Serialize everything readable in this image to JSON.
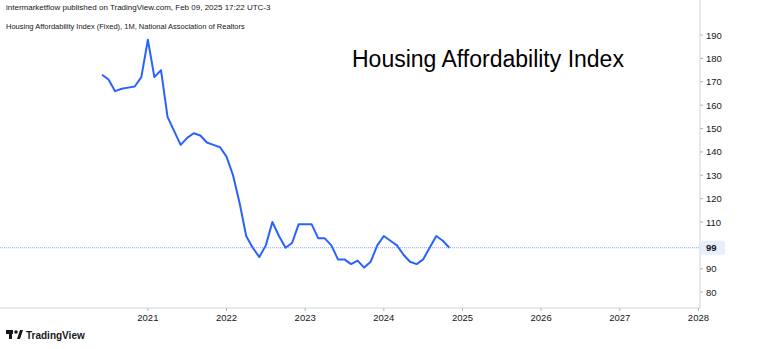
{
  "chart_data": {
    "type": "line",
    "title": "Housing Affordability Index",
    "annotations": [
      "intermarketflow published on TradingView.com, Feb 09, 2025 17:22 UTC-3",
      "TradingView"
    ],
    "x": [
      2020.417,
      2020.5,
      2020.583,
      2020.667,
      2020.75,
      2020.833,
      2020.917,
      2021.0,
      2021.083,
      2021.167,
      2021.25,
      2021.333,
      2021.417,
      2021.5,
      2021.583,
      2021.667,
      2021.75,
      2021.833,
      2021.917,
      2022.0,
      2022.083,
      2022.167,
      2022.25,
      2022.333,
      2022.417,
      2022.5,
      2022.583,
      2022.667,
      2022.75,
      2022.833,
      2022.917,
      2023.0,
      2023.083,
      2023.167,
      2023.25,
      2023.333,
      2023.417,
      2023.5,
      2023.583,
      2023.667,
      2023.75,
      2023.833,
      2023.917,
      2024.0,
      2024.083,
      2024.167,
      2024.25,
      2024.333,
      2024.417,
      2024.5,
      2024.583,
      2024.667,
      2024.75,
      2024.833
    ],
    "series": [
      {
        "name": "Housing Affordability Index (Fixed), 1M, National Association of Realtors",
        "color": "#2962ff",
        "values": [
          173,
          171,
          166,
          167,
          167.5,
          168,
          172,
          188,
          172,
          175,
          155,
          149,
          143,
          146,
          148,
          147,
          144,
          143,
          142,
          138,
          130,
          118,
          104,
          99,
          95,
          100,
          110,
          104,
          99,
          101,
          109,
          109,
          109,
          103,
          103,
          100,
          94,
          94,
          92,
          93.5,
          90.5,
          93,
          100,
          104,
          102,
          100,
          96,
          93,
          92,
          94,
          99,
          104,
          102,
          99
        ]
      }
    ],
    "xlim": [
      2019.12,
      2028.02
    ],
    "xticks": [
      2021,
      2022,
      2023,
      2024,
      2025,
      2026,
      2027,
      2028
    ],
    "ylim": [
      73.2,
      205
    ],
    "yticks": [
      80,
      90,
      110,
      120,
      130,
      140,
      150,
      160,
      170,
      180,
      190
    ],
    "grid": false
  }
}
